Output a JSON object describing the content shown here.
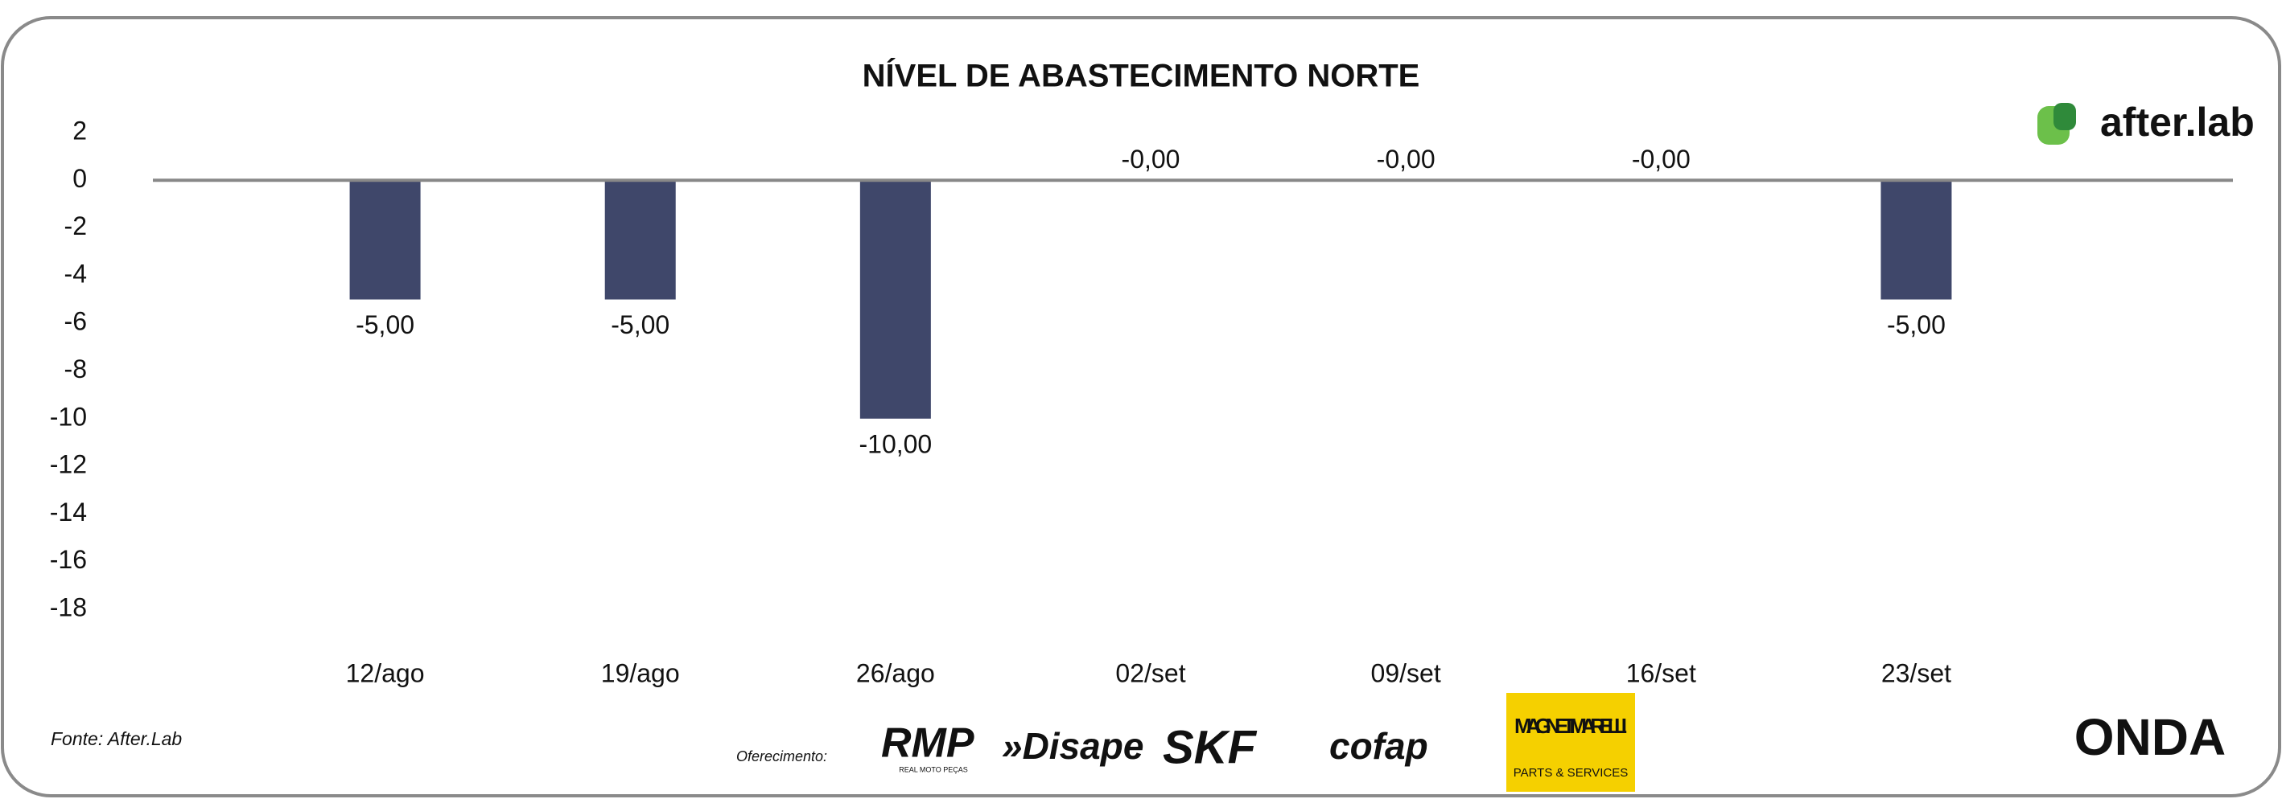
{
  "chart_data": {
    "type": "bar",
    "title": "NÍVEL DE ABASTECIMENTO NORTE",
    "categories": [
      "12/ago",
      "19/ago",
      "26/ago",
      "02/set",
      "09/set",
      "16/set",
      "23/set"
    ],
    "values": [
      -5,
      -5,
      -10,
      0,
      0,
      0,
      -5
    ],
    "value_labels": [
      "-5,00",
      "-5,00",
      "-10,00",
      "-0,00",
      "-0,00",
      "-0,00",
      "-5,00"
    ],
    "color": "#3f476a",
    "ylim": [
      -18,
      2
    ],
    "yticks": [
      2,
      0,
      -2,
      -4,
      -6,
      -8,
      -10,
      -12,
      -14,
      -16,
      -18
    ],
    "grid": false
  },
  "footer": {
    "source": "Fonte: After.Lab",
    "sponsor_label": "Oferecimento:"
  },
  "logos": {
    "brand": "after.lab",
    "rmp": "RMP",
    "rmp_sub": "REAL MOTO PEÇAS",
    "disape": "»Disape",
    "skf": "SKF",
    "cofap": "cofap",
    "magneti": "MAGNETI MARELLI",
    "magneti_sub": "PARTS & SERVICES",
    "onda": "ONDA"
  }
}
